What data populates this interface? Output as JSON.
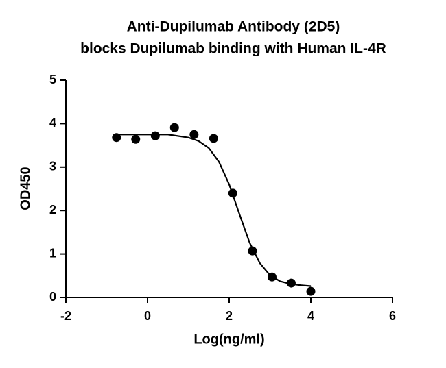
{
  "chart_data": {
    "type": "scatter",
    "title": [
      "Anti-Dupilumab Antibody (2D5)",
      "blocks Dupilumab binding with Human IL-4R"
    ],
    "x_label": "Log(ng/ml)",
    "y_label": "OD450",
    "xlim": [
      -2,
      6
    ],
    "xticks": [
      -2,
      0,
      2,
      4,
      6
    ],
    "ylim": [
      0,
      5
    ],
    "yticks": [
      0,
      1,
      2,
      3,
      4,
      5
    ],
    "series": [
      {
        "color": "#000000",
        "marker": "circle",
        "x": [
          -0.76,
          -0.29,
          0.19,
          0.66,
          1.14,
          1.62,
          2.09,
          2.57,
          3.05,
          3.52,
          4.0
        ],
        "values": [
          3.68,
          3.64,
          3.72,
          3.91,
          3.75,
          3.66,
          2.4,
          1.07,
          0.47,
          0.33,
          0.14
        ]
      },
      {
        "color": "#000000",
        "marker": "none",
        "x": [
          -0.76,
          0,
          0.5,
          1,
          1.25,
          1.5,
          1.75,
          2,
          2.25,
          2.5,
          2.75,
          3,
          3.25,
          3.5,
          3.75,
          4.0
        ],
        "values": [
          3.75,
          3.75,
          3.75,
          3.68,
          3.6,
          3.44,
          3.12,
          2.6,
          1.92,
          1.26,
          0.79,
          0.51,
          0.37,
          0.31,
          0.28,
          0.26
        ]
      }
    ]
  }
}
